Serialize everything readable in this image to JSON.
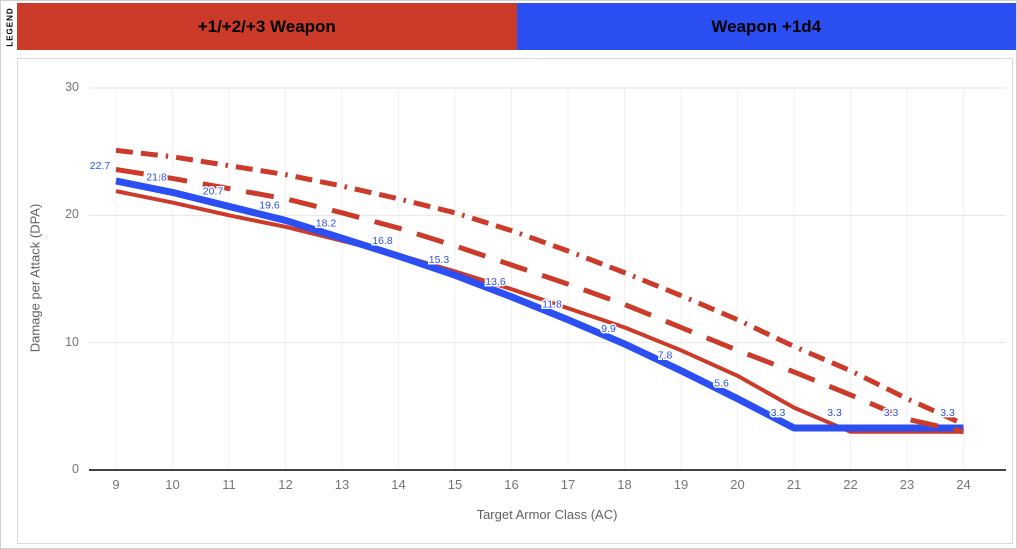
{
  "page": {
    "legend_strip_label": "LEGEND"
  },
  "legend": {
    "items": [
      {
        "label": "+1/+2/+3 Weapon",
        "color": "#cc3a2a"
      },
      {
        "label": "Weapon +1d4",
        "color": "#2b4ff2"
      }
    ]
  },
  "chart_data": {
    "type": "line",
    "title": "",
    "xlabel": "Target Armor Class (AC)",
    "ylabel": "Damage per Attack (DPA)",
    "x": [
      9,
      10,
      11,
      12,
      13,
      14,
      15,
      16,
      17,
      18,
      19,
      20,
      21,
      22,
      23,
      24
    ],
    "yticks": [
      0,
      10,
      20,
      30
    ],
    "ylim": [
      0,
      30
    ],
    "grid": true,
    "legend_position": "top",
    "colors": {
      "red": "#cc3a2a",
      "blue": "#2b4ff2",
      "grid": "#e6e6e6",
      "grid_vertical": "#f1f1f1",
      "axis": "#424242",
      "tick_text": "#757575"
    },
    "series": [
      {
        "name": "+1 Weapon",
        "color": "#cc3a2a",
        "dash": "solid",
        "width": 4,
        "z": 1,
        "values": [
          21.9,
          21.0,
          20.0,
          19.1,
          18.0,
          16.9,
          15.6,
          14.2,
          12.7,
          11.2,
          9.4,
          7.4,
          4.9,
          3.0,
          3.0,
          3.0
        ]
      },
      {
        "name": "Weapon +1d4",
        "color": "#2b4ff2",
        "dash": "solid",
        "width": 7,
        "z": 2,
        "values": [
          22.7,
          21.8,
          20.7,
          19.6,
          18.2,
          16.8,
          15.3,
          13.6,
          11.8,
          9.9,
          7.8,
          5.6,
          3.3,
          3.3,
          3.3,
          3.3
        ],
        "point_labels": [
          "22.7",
          "21.8",
          "20.7",
          "19.6",
          "18.2",
          "16.8",
          "15.3",
          "13.6",
          "11.8",
          "9.9",
          "7.8",
          "5.6",
          "3.3",
          "3.3",
          "3.3",
          "3.3"
        ]
      },
      {
        "name": "+2 Weapon",
        "color": "#cc3a2a",
        "dash": "long-dash",
        "width": 5,
        "z": 3,
        "values": [
          23.6,
          22.9,
          22.1,
          21.3,
          20.2,
          19.0,
          17.6,
          16.1,
          14.6,
          13.0,
          11.2,
          9.4,
          7.7,
          5.9,
          4.0,
          3.0
        ]
      },
      {
        "name": "+3 Weapon",
        "color": "#cc3a2a",
        "dash": "dash-dot",
        "width": 5,
        "z": 4,
        "values": [
          25.1,
          24.6,
          23.9,
          23.2,
          22.3,
          21.3,
          20.2,
          18.8,
          17.2,
          15.5,
          13.7,
          11.8,
          9.7,
          7.8,
          5.6,
          3.6
        ]
      }
    ]
  }
}
